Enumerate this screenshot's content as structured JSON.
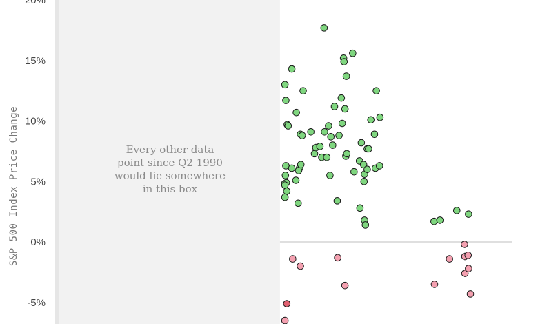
{
  "chart_data": {
    "type": "scatter",
    "title": "",
    "xlabel": "",
    "ylabel": "S&P 500 Index Price Change",
    "y_unit": "%",
    "ylim": [
      -6.5,
      20
    ],
    "y_ticks": [
      {
        "value": 20,
        "label": "20%"
      },
      {
        "value": 15,
        "label": "15%"
      },
      {
        "value": 10,
        "label": "10%"
      },
      {
        "value": 5,
        "label": "5%"
      },
      {
        "value": 0,
        "label": "0%"
      },
      {
        "value": -5,
        "label": "-5%"
      }
    ],
    "xlim": [
      0,
      100
    ],
    "grid": false,
    "zero_line": true,
    "shaded_region": {
      "x_range": [
        0,
        49
      ],
      "annotation_lines": [
        "Every other data",
        "point since Q2 1990",
        "would lie somewhere",
        "in this box"
      ]
    },
    "colors": {
      "positive": "#7fd67f",
      "negative": "#f4a0b0",
      "negative_dark": "#e06070",
      "marker_edge": "#1a1a1a",
      "shade": "#f2f2f2",
      "zero_line": "#cccccc"
    },
    "series": [
      {
        "color": "positive",
        "points": [
          [
            50.1,
            13.0
          ],
          [
            50.3,
            11.7
          ],
          [
            50.6,
            9.7
          ],
          [
            50.8,
            9.6
          ],
          [
            51.6,
            14.3
          ],
          [
            52.6,
            10.7
          ],
          [
            53.5,
            8.9
          ],
          [
            53.9,
            8.8
          ],
          [
            54.1,
            12.5
          ],
          [
            55.8,
            9.1
          ],
          [
            56.6,
            7.3
          ],
          [
            56.9,
            7.8
          ],
          [
            57.8,
            7.9
          ],
          [
            58.2,
            7.0
          ],
          [
            58.8,
            9.1
          ],
          [
            59.3,
            7.0
          ],
          [
            59.7,
            9.6
          ],
          [
            60.2,
            8.7
          ],
          [
            60.6,
            8.0
          ],
          [
            61.0,
            11.2
          ],
          [
            62.0,
            8.8
          ],
          [
            62.5,
            11.9
          ],
          [
            62.7,
            9.8
          ],
          [
            63.0,
            15.2
          ],
          [
            63.1,
            14.9
          ],
          [
            63.3,
            11.0
          ],
          [
            63.5,
            7.1
          ],
          [
            63.6,
            13.7
          ],
          [
            63.7,
            7.3
          ],
          [
            65.0,
            15.6
          ],
          [
            66.9,
            8.2
          ],
          [
            68.2,
            7.7
          ],
          [
            68.5,
            7.7
          ],
          [
            69.0,
            10.1
          ],
          [
            69.8,
            8.9
          ],
          [
            70.2,
            12.5
          ],
          [
            71.0,
            10.3
          ],
          [
            58.7,
            17.7
          ],
          [
            50.3,
            6.3
          ],
          [
            50.2,
            5.5
          ],
          [
            50.0,
            4.8
          ],
          [
            50.4,
            4.9
          ],
          [
            50.1,
            4.7
          ],
          [
            50.5,
            4.2
          ],
          [
            50.1,
            3.7
          ],
          [
            51.6,
            6.1
          ],
          [
            52.5,
            5.1
          ],
          [
            53.3,
            6.1
          ],
          [
            53.1,
            5.9
          ],
          [
            53.6,
            6.4
          ],
          [
            53.0,
            3.2
          ],
          [
            60.0,
            5.5
          ],
          [
            61.6,
            3.4
          ],
          [
            65.3,
            5.8
          ],
          [
            66.5,
            6.7
          ],
          [
            67.4,
            6.4
          ],
          [
            67.5,
            5.0
          ],
          [
            67.6,
            5.6
          ],
          [
            68.2,
            6.0
          ],
          [
            66.6,
            2.8
          ],
          [
            67.6,
            1.8
          ],
          [
            67.8,
            1.4
          ],
          [
            70.0,
            6.1
          ],
          [
            70.9,
            6.3
          ],
          [
            82.9,
            1.7
          ],
          [
            84.2,
            1.8
          ],
          [
            87.9,
            2.6
          ],
          [
            90.5,
            2.3
          ]
        ]
      },
      {
        "color": "negative",
        "points": [
          [
            51.8,
            -1.4
          ],
          [
            53.5,
            -2.0
          ],
          [
            61.7,
            -1.3
          ],
          [
            63.3,
            -3.6
          ],
          [
            83.0,
            -3.5
          ],
          [
            86.3,
            -1.4
          ],
          [
            89.6,
            -0.2
          ],
          [
            89.7,
            -1.2
          ],
          [
            90.4,
            -1.1
          ],
          [
            89.7,
            -2.6
          ],
          [
            90.5,
            -2.2
          ],
          [
            90.9,
            -4.3
          ],
          [
            50.1,
            -6.5
          ]
        ]
      },
      {
        "color": "negative_dark",
        "points": [
          [
            50.5,
            -5.1
          ]
        ]
      }
    ]
  }
}
